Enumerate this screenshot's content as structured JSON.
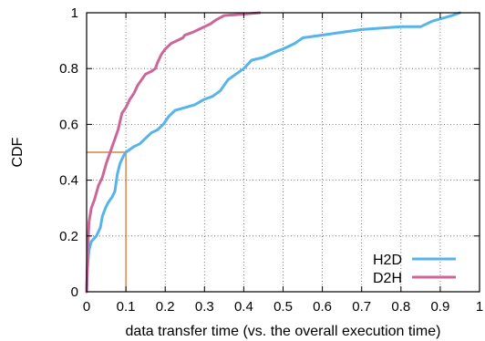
{
  "chart_data": {
    "type": "line",
    "xlabel": "data transfer time (vs. the overall execution time)",
    "ylabel": "CDF",
    "xlim": [
      0,
      1
    ],
    "ylim": [
      0,
      1
    ],
    "x_ticks": [
      "0",
      "0.1",
      "0.2",
      "0.3",
      "0.4",
      "0.5",
      "0.6",
      "0.7",
      "0.8",
      "0.9",
      "1"
    ],
    "y_ticks": [
      "0",
      "0.2",
      "0.4",
      "0.6",
      "0.8",
      "1"
    ],
    "grid": true,
    "legend_position": "bottom-right",
    "annotation": {
      "x": 0.1,
      "y": 0.5,
      "color": "#d2691e"
    },
    "series": [
      {
        "name": "H2D",
        "color": "#56b4e9",
        "points": [
          [
            0,
            0
          ],
          [
            0.002,
            0.08
          ],
          [
            0.006,
            0.15
          ],
          [
            0.012,
            0.18
          ],
          [
            0.025,
            0.2
          ],
          [
            0.035,
            0.23
          ],
          [
            0.04,
            0.27
          ],
          [
            0.048,
            0.3
          ],
          [
            0.055,
            0.32
          ],
          [
            0.065,
            0.34
          ],
          [
            0.072,
            0.36
          ],
          [
            0.078,
            0.42
          ],
          [
            0.085,
            0.46
          ],
          [
            0.095,
            0.49
          ],
          [
            0.1,
            0.5
          ],
          [
            0.12,
            0.52
          ],
          [
            0.135,
            0.53
          ],
          [
            0.15,
            0.55
          ],
          [
            0.165,
            0.57
          ],
          [
            0.18,
            0.58
          ],
          [
            0.195,
            0.6
          ],
          [
            0.2,
            0.61
          ],
          [
            0.21,
            0.63
          ],
          [
            0.225,
            0.65
          ],
          [
            0.25,
            0.66
          ],
          [
            0.275,
            0.67
          ],
          [
            0.3,
            0.69
          ],
          [
            0.32,
            0.7
          ],
          [
            0.34,
            0.72
          ],
          [
            0.36,
            0.76
          ],
          [
            0.38,
            0.78
          ],
          [
            0.4,
            0.8
          ],
          [
            0.42,
            0.83
          ],
          [
            0.45,
            0.84
          ],
          [
            0.48,
            0.86
          ],
          [
            0.5,
            0.87
          ],
          [
            0.53,
            0.89
          ],
          [
            0.55,
            0.91
          ],
          [
            0.6,
            0.92
          ],
          [
            0.65,
            0.93
          ],
          [
            0.7,
            0.94
          ],
          [
            0.8,
            0.95
          ],
          [
            0.85,
            0.95
          ],
          [
            0.88,
            0.97
          ],
          [
            0.93,
            0.99
          ],
          [
            0.95,
            1.0
          ]
        ]
      },
      {
        "name": "D2H",
        "color": "#cc6699",
        "points": [
          [
            0,
            0
          ],
          [
            0.003,
            0.15
          ],
          [
            0.006,
            0.25
          ],
          [
            0.012,
            0.3
          ],
          [
            0.02,
            0.33
          ],
          [
            0.03,
            0.38
          ],
          [
            0.04,
            0.41
          ],
          [
            0.05,
            0.46
          ],
          [
            0.06,
            0.5
          ],
          [
            0.07,
            0.54
          ],
          [
            0.075,
            0.56
          ],
          [
            0.08,
            0.58
          ],
          [
            0.085,
            0.61
          ],
          [
            0.09,
            0.64
          ],
          [
            0.1,
            0.66
          ],
          [
            0.11,
            0.69
          ],
          [
            0.12,
            0.71
          ],
          [
            0.13,
            0.74
          ],
          [
            0.14,
            0.76
          ],
          [
            0.15,
            0.78
          ],
          [
            0.165,
            0.79
          ],
          [
            0.175,
            0.8
          ],
          [
            0.18,
            0.82
          ],
          [
            0.19,
            0.85
          ],
          [
            0.2,
            0.87
          ],
          [
            0.215,
            0.89
          ],
          [
            0.23,
            0.9
          ],
          [
            0.245,
            0.91
          ],
          [
            0.25,
            0.92
          ],
          [
            0.27,
            0.93
          ],
          [
            0.285,
            0.94
          ],
          [
            0.3,
            0.95
          ],
          [
            0.315,
            0.96
          ],
          [
            0.33,
            0.975
          ],
          [
            0.35,
            0.99
          ],
          [
            0.4,
            0.995
          ],
          [
            0.44,
            1.0
          ]
        ]
      }
    ]
  }
}
